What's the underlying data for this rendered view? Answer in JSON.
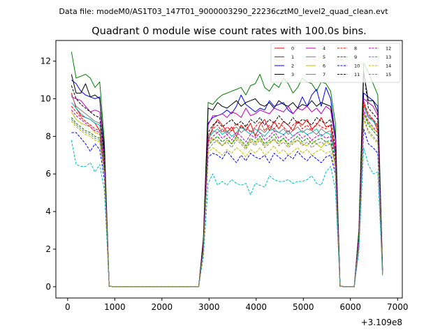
{
  "chart_data": {
    "type": "line",
    "suptitle": "Data file: modeM0/AS1T03_147T01_9000003290_22236cztM0_level2_quad_clean.evt",
    "title": "Quadrant 0 module wise count rates with 100.0s bins.",
    "xlabel": "",
    "ylabel": "",
    "x_offset_text": "+3.109e8",
    "xlim": [
      -250,
      7100
    ],
    "ylim": [
      -0.6,
      13.1
    ],
    "xticks": [
      0,
      1000,
      2000,
      3000,
      4000,
      5000,
      6000,
      7000
    ],
    "xtick_labels": [
      "0",
      "1000",
      "2000",
      "3000",
      "4000",
      "5000",
      "6000",
      "7000"
    ],
    "yticks": [
      0,
      2,
      4,
      6,
      8,
      10,
      12
    ],
    "ytick_labels": [
      "0",
      "2",
      "4",
      "6",
      "8",
      "10",
      "12"
    ],
    "legend_position": "upper right",
    "x": [
      80,
      180,
      280,
      380,
      480,
      580,
      680,
      780,
      880,
      980,
      1080,
      1180,
      1280,
      1380,
      1480,
      1580,
      1680,
      1780,
      1880,
      1980,
      2080,
      2180,
      2280,
      2380,
      2480,
      2580,
      2680,
      2780,
      2880,
      2980,
      3080,
      3180,
      3280,
      3380,
      3480,
      3580,
      3680,
      3780,
      3880,
      3980,
      4080,
      4180,
      4280,
      4380,
      4480,
      4580,
      4680,
      4780,
      4880,
      4980,
      5080,
      5180,
      5280,
      5380,
      5480,
      5580,
      5680,
      5780,
      5880,
      5980,
      6080,
      6180,
      6280,
      6380,
      6480,
      6580,
      6680
    ],
    "series": [
      {
        "name": "0",
        "color": "#ff0000",
        "dash": false,
        "values": [
          10.3,
          9.5,
          9.1,
          9.0,
          8.9,
          8.7,
          8.3,
          6.6,
          0.02,
          0,
          0,
          0,
          0,
          0,
          0,
          0,
          0,
          0,
          0,
          0,
          0,
          0,
          0,
          0,
          0,
          0,
          0,
          0,
          2.1,
          7.7,
          8.5,
          8.9,
          8.6,
          8.2,
          8.5,
          8.0,
          8.6,
          8.3,
          8.7,
          8.0,
          8.6,
          8.9,
          8.3,
          8.8,
          8.4,
          8.8,
          8.6,
          8.3,
          8.8,
          8.6,
          8.9,
          8.4,
          8.6,
          9.0,
          8.5,
          8.6,
          7.1,
          0.02,
          0,
          0,
          0,
          2.6,
          9.9,
          9.0,
          8.9,
          8.3,
          0.8
        ]
      },
      {
        "name": "1",
        "color": "#008000",
        "dash": false,
        "values": [
          12.5,
          11.1,
          11.2,
          11.3,
          11.1,
          10.6,
          10.9,
          7.7,
          0.03,
          0,
          0,
          0,
          0,
          0,
          0,
          0,
          0,
          0,
          0,
          0,
          0,
          0,
          0,
          0,
          0,
          0,
          0,
          0,
          2.6,
          9.8,
          9.7,
          10.0,
          10.2,
          10.3,
          10.4,
          10.5,
          10.6,
          10.2,
          10.7,
          10.8,
          11.3,
          10.6,
          10.4,
          10.8,
          10.6,
          11.1,
          10.8,
          10.3,
          10.6,
          11.1,
          10.9,
          10.8,
          10.4,
          10.9,
          10.8,
          10.4,
          8.7,
          0.03,
          0,
          0,
          0,
          3.1,
          11.9,
          11.4,
          10.8,
          10.2,
          1.0
        ]
      },
      {
        "name": "2",
        "color": "#0000ff",
        "dash": false,
        "values": [
          11.0,
          10.8,
          10.4,
          10.2,
          10.1,
          10.0,
          10.1,
          7.1,
          0.03,
          0,
          0,
          0,
          0,
          0,
          0,
          0,
          0,
          0,
          0,
          0,
          0,
          0,
          0,
          0,
          0,
          0,
          0,
          0,
          2.4,
          8.7,
          9.0,
          9.1,
          9.2,
          9.4,
          9.2,
          9.6,
          10.2,
          9.7,
          9.5,
          9.3,
          9.5,
          9.4,
          9.9,
          9.6,
          9.7,
          9.8,
          9.4,
          9.2,
          9.5,
          10.1,
          9.6,
          10.2,
          10.5,
          9.6,
          10.6,
          10.0,
          8.0,
          0.03,
          0,
          0,
          0,
          2.8,
          10.3,
          10.1,
          9.9,
          9.6,
          0.9
        ]
      },
      {
        "name": "3",
        "color": "#000000",
        "dash": false,
        "values": [
          11.3,
          10.3,
          10.3,
          10.8,
          10.1,
          10.2,
          10.0,
          7.3,
          0.03,
          0,
          0,
          0,
          0,
          0,
          0,
          0,
          0,
          0,
          0,
          0,
          0,
          0,
          0,
          0,
          0,
          0,
          0,
          0,
          2.5,
          9.5,
          9.4,
          9.8,
          9.6,
          9.5,
          9.7,
          9.9,
          9.6,
          9.8,
          9.9,
          10.0,
          9.7,
          9.6,
          9.8,
          9.5,
          9.9,
          9.7,
          9.6,
          9.8,
          9.5,
          9.7,
          9.6,
          9.9,
          9.6,
          9.8,
          9.7,
          9.6,
          7.9,
          0.03,
          0,
          0,
          0,
          2.8,
          11.4,
          9.9,
          9.9,
          9.3,
          0.9
        ]
      },
      {
        "name": "4",
        "color": "#bf00bf",
        "dash": false,
        "values": [
          10.1,
          10.0,
          9.9,
          9.6,
          9.3,
          9.4,
          9.3,
          6.9,
          0.02,
          0,
          0,
          0,
          0,
          0,
          0,
          0,
          0,
          0,
          0,
          0,
          0,
          0,
          0,
          0,
          0,
          0,
          0,
          0,
          2.3,
          8.6,
          9.1,
          9.1,
          9.2,
          9.0,
          9.3,
          9.2,
          9.0,
          9.5,
          9.1,
          9.2,
          9.4,
          9.3,
          9.2,
          9.5,
          9.4,
          9.3,
          9.6,
          9.2,
          9.5,
          9.4,
          9.6,
          9.3,
          9.5,
          9.2,
          9.6,
          9.4,
          7.8,
          0.03,
          0,
          0,
          0,
          2.8,
          10.0,
          9.8,
          9.6,
          9.1,
          0.8
        ]
      },
      {
        "name": "5",
        "color": "#00bfbf",
        "dash": false,
        "values": [
          9.8,
          9.5,
          9.2,
          9.0,
          8.9,
          8.7,
          8.6,
          6.5,
          0.02,
          0,
          0,
          0,
          0,
          0,
          0,
          0,
          0,
          0,
          0,
          0,
          0,
          0,
          0,
          0,
          0,
          0,
          0,
          0,
          2.1,
          7.9,
          8.2,
          8.4,
          8.1,
          8.3,
          8.0,
          8.2,
          8.5,
          8.3,
          8.1,
          8.4,
          8.2,
          8.0,
          8.3,
          8.4,
          8.2,
          8.1,
          8.3,
          8.0,
          8.2,
          8.3,
          8.1,
          8.2,
          8.4,
          8.0,
          8.2,
          8.1,
          7.0,
          0.02,
          0,
          0,
          0,
          2.6,
          9.6,
          9.0,
          8.8,
          8.5,
          0.8
        ]
      },
      {
        "name": "6",
        "color": "#bfbf00",
        "dash": false,
        "values": [
          9.3,
          8.9,
          8.7,
          8.6,
          8.5,
          8.2,
          8.1,
          6.3,
          0.02,
          0,
          0,
          0,
          0,
          0,
          0,
          0,
          0,
          0,
          0,
          0,
          0,
          0,
          0,
          0,
          0,
          0,
          0,
          0,
          2.0,
          7.6,
          7.9,
          7.7,
          7.5,
          7.8,
          7.6,
          7.9,
          7.7,
          7.4,
          7.8,
          7.6,
          7.9,
          7.5,
          7.7,
          7.8,
          7.6,
          7.9,
          7.5,
          7.7,
          7.8,
          7.6,
          7.5,
          7.8,
          7.6,
          7.4,
          7.7,
          7.6,
          6.5,
          0.02,
          0,
          0,
          0,
          2.4,
          9.3,
          8.7,
          8.4,
          8.2,
          0.7
        ]
      },
      {
        "name": "7",
        "color": "#808080",
        "dash": false,
        "values": [
          10.2,
          9.6,
          9.4,
          9.2,
          9.0,
          8.8,
          8.7,
          6.7,
          0.02,
          0,
          0,
          0,
          0,
          0,
          0,
          0,
          0,
          0,
          0,
          0,
          0,
          0,
          0,
          0,
          0,
          0,
          0,
          0,
          2.1,
          8.0,
          8.3,
          8.2,
          8.4,
          8.1,
          8.3,
          8.5,
          8.2,
          8.4,
          8.3,
          8.1,
          8.4,
          8.2,
          8.5,
          8.3,
          8.2,
          8.4,
          8.1,
          8.3,
          8.5,
          8.2,
          8.4,
          8.3,
          8.1,
          8.4,
          8.2,
          8.3,
          7.1,
          0.02,
          0,
          0,
          0,
          2.6,
          9.7,
          9.1,
          8.9,
          8.5,
          0.8
        ]
      },
      {
        "name": "8",
        "color": "#ff0000",
        "dash": true,
        "values": [
          9.6,
          9.3,
          9.0,
          8.8,
          8.6,
          8.4,
          8.3,
          6.5,
          0.02,
          0,
          0,
          0,
          0,
          0,
          0,
          0,
          0,
          0,
          0,
          0,
          0,
          0,
          0,
          0,
          0,
          0,
          0,
          0,
          2.1,
          8.0,
          8.4,
          8.6,
          8.2,
          8.5,
          8.3,
          8.7,
          8.4,
          8.6,
          8.2,
          8.5,
          8.8,
          8.3,
          8.6,
          8.4,
          8.7,
          8.5,
          8.2,
          8.6,
          8.8,
          8.4,
          8.6,
          8.3,
          8.7,
          8.5,
          8.4,
          8.6,
          7.2,
          0.02,
          0,
          0,
          0,
          2.6,
          9.8,
          9.2,
          8.9,
          8.6,
          0.8
        ]
      },
      {
        "name": "9",
        "color": "#008000",
        "dash": true,
        "values": [
          9.0,
          8.7,
          8.5,
          8.3,
          8.2,
          8.0,
          7.9,
          6.2,
          0.02,
          0,
          0,
          0,
          0,
          0,
          0,
          0,
          0,
          0,
          0,
          0,
          0,
          0,
          0,
          0,
          0,
          0,
          0,
          0,
          2.0,
          7.5,
          7.8,
          8.0,
          7.7,
          7.9,
          7.6,
          8.0,
          7.8,
          7.5,
          7.9,
          7.7,
          8.0,
          7.6,
          7.8,
          8.1,
          7.7,
          7.9,
          7.6,
          7.8,
          8.0,
          7.7,
          7.9,
          7.6,
          7.8,
          7.9,
          7.7,
          7.8,
          6.6,
          0.02,
          0,
          0,
          0,
          2.4,
          9.2,
          8.6,
          8.3,
          8.0,
          0.7
        ]
      },
      {
        "name": "10",
        "color": "#0000ff",
        "dash": true,
        "values": [
          8.2,
          8.2,
          7.9,
          7.6,
          7.2,
          7.6,
          7.3,
          5.7,
          0.02,
          0,
          0,
          0,
          0,
          0,
          0,
          0,
          0,
          0,
          0,
          0,
          0,
          0,
          0,
          0,
          0,
          0,
          0,
          0,
          1.8,
          6.9,
          7.1,
          7.0,
          6.8,
          7.2,
          6.9,
          6.6,
          7.0,
          6.7,
          7.1,
          6.9,
          6.8,
          7.0,
          6.6,
          7.1,
          6.9,
          6.7,
          7.0,
          6.8,
          7.2,
          6.9,
          6.7,
          7.0,
          6.8,
          6.6,
          6.9,
          7.0,
          6.0,
          0.02,
          0,
          0,
          0,
          2.1,
          8.4,
          7.6,
          7.4,
          7.1,
          0.6
        ]
      },
      {
        "name": "11",
        "color": "#000000",
        "dash": true,
        "values": [
          10.7,
          10.0,
          9.7,
          9.5,
          9.3,
          9.1,
          9.0,
          6.9,
          0.02,
          0,
          0,
          0,
          0,
          0,
          0,
          0,
          0,
          0,
          0,
          0,
          0,
          0,
          0,
          0,
          0,
          0,
          0,
          0,
          2.2,
          8.2,
          8.6,
          8.8,
          8.5,
          8.7,
          8.9,
          8.6,
          8.8,
          8.5,
          8.9,
          8.7,
          9.0,
          8.6,
          8.9,
          8.7,
          9.1,
          8.8,
          8.6,
          9.0,
          8.7,
          8.9,
          8.8,
          8.6,
          9.0,
          8.8,
          8.7,
          8.9,
          7.4,
          0.02,
          0,
          0,
          0,
          2.7,
          11.5,
          9.5,
          9.2,
          8.9,
          0.9
        ]
      },
      {
        "name": "12",
        "color": "#bf00bf",
        "dash": true,
        "values": [
          9.4,
          9.1,
          8.9,
          8.7,
          8.5,
          8.3,
          8.2,
          6.4,
          0.02,
          0,
          0,
          0,
          0,
          0,
          0,
          0,
          0,
          0,
          0,
          0,
          0,
          0,
          0,
          0,
          0,
          0,
          0,
          0,
          2.0,
          7.7,
          8.0,
          8.2,
          7.9,
          8.1,
          7.8,
          8.2,
          8.0,
          7.7,
          8.1,
          7.9,
          8.2,
          7.8,
          8.0,
          8.3,
          7.9,
          8.1,
          7.8,
          8.0,
          8.2,
          7.9,
          8.1,
          7.8,
          8.0,
          8.1,
          7.9,
          8.0,
          6.8,
          0.02,
          0,
          0,
          0,
          2.5,
          9.4,
          8.8,
          8.5,
          8.2,
          0.7
        ]
      },
      {
        "name": "13",
        "color": "#00bfbf",
        "dash": true,
        "values": [
          7.8,
          6.5,
          6.4,
          6.4,
          6.6,
          6.1,
          6.5,
          5.1,
          0.02,
          0,
          0,
          0,
          0,
          0,
          0,
          0,
          0,
          0,
          0,
          0,
          0,
          0,
          0,
          0,
          0,
          0,
          0,
          0,
          1.6,
          5.5,
          6.0,
          5.4,
          5.6,
          5.4,
          5.7,
          5.5,
          5.4,
          5.5,
          4.9,
          5.5,
          5.4,
          5.3,
          5.9,
          5.7,
          5.6,
          5.6,
          5.7,
          5.5,
          5.6,
          5.6,
          5.7,
          5.9,
          5.5,
          5.4,
          6.1,
          6.4,
          5.2,
          0.02,
          0,
          0,
          0,
          1.9,
          7.4,
          6.5,
          6.0,
          6.1,
          0.6
        ]
      },
      {
        "name": "14",
        "color": "#bfbf00",
        "dash": true,
        "values": [
          8.8,
          8.5,
          8.3,
          8.1,
          8.0,
          7.8,
          7.7,
          6.0,
          0.02,
          0,
          0,
          0,
          0,
          0,
          0,
          0,
          0,
          0,
          0,
          0,
          0,
          0,
          0,
          0,
          0,
          0,
          0,
          0,
          1.9,
          7.1,
          7.4,
          7.2,
          7.0,
          7.3,
          7.1,
          7.4,
          7.2,
          6.9,
          7.3,
          7.1,
          7.4,
          7.0,
          7.2,
          7.5,
          7.1,
          7.3,
          7.0,
          7.2,
          7.4,
          7.1,
          7.3,
          7.0,
          7.2,
          7.3,
          7.1,
          7.2,
          6.2,
          0.02,
          0,
          0,
          0,
          2.3,
          8.9,
          8.2,
          7.9,
          7.6,
          0.7
        ]
      },
      {
        "name": "15",
        "color": "#808080",
        "dash": true,
        "values": [
          8.9,
          8.6,
          8.4,
          8.2,
          8.1,
          7.9,
          7.8,
          6.1,
          0.02,
          0,
          0,
          0,
          0,
          0,
          0,
          0,
          0,
          0,
          0,
          0,
          0,
          0,
          0,
          0,
          0,
          0,
          0,
          0,
          1.9,
          7.3,
          7.6,
          7.8,
          7.5,
          7.7,
          7.4,
          7.8,
          7.6,
          7.3,
          7.7,
          7.5,
          7.8,
          7.4,
          7.6,
          7.9,
          7.5,
          7.7,
          7.4,
          7.6,
          7.8,
          7.5,
          7.7,
          7.4,
          7.6,
          7.7,
          7.5,
          7.6,
          6.4,
          0.02,
          0,
          0,
          0,
          2.3,
          9.0,
          8.3,
          8.0,
          7.7,
          0.7
        ]
      }
    ]
  }
}
